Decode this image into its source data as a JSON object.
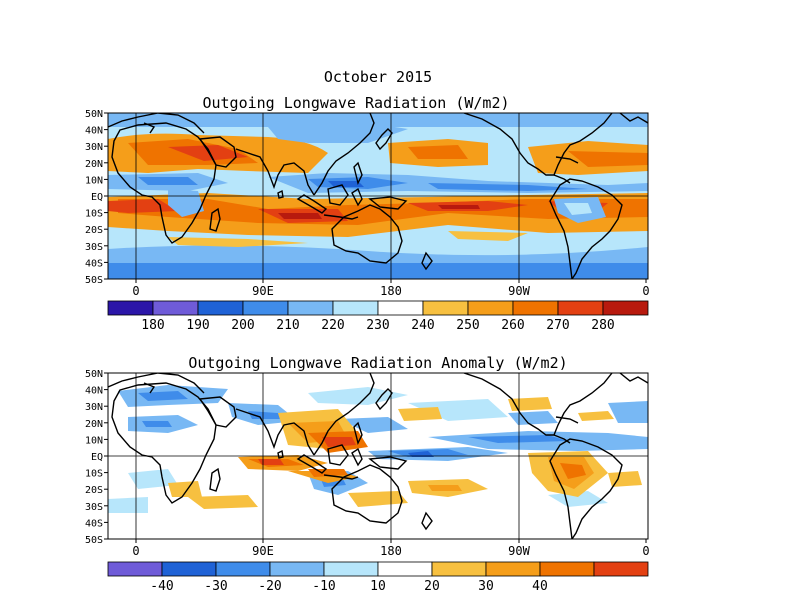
{
  "header": {
    "period": "October 2015",
    "panel1_title": "Outgoing Longwave Radiation (W/m2)",
    "panel2_title": "Outgoing Longwave Radiation Anomaly (W/m2)"
  },
  "axes": {
    "lat_labels": [
      "50N",
      "40N",
      "30N",
      "20N",
      "10N",
      "EQ",
      "10S",
      "20S",
      "30S",
      "40S",
      "50S"
    ],
    "lon_labels": [
      "0",
      "90E",
      "180",
      "90W",
      "0"
    ]
  },
  "colorbar1": {
    "labels": [
      "180",
      "190",
      "200",
      "210",
      "220",
      "230",
      "240",
      "250",
      "260",
      "270",
      "280"
    ],
    "colors": [
      "#2b16a8",
      "#6f5bd8",
      "#1f62d6",
      "#3f8cea",
      "#78b8f4",
      "#b7e6fb",
      "#ffffff",
      "#f7c040",
      "#f59e1a",
      "#ef7300",
      "#e34012",
      "#b81a0e"
    ]
  },
  "colorbar2": {
    "labels": [
      "-40",
      "-30",
      "-20",
      "-10",
      "10",
      "20",
      "30",
      "40"
    ],
    "colors": [
      "#6f5bd8",
      "#1f62d6",
      "#3f8cea",
      "#78b8f4",
      "#b7e6fb",
      "#ffffff",
      "#f7c040",
      "#f59e1a",
      "#ef7300",
      "#e34012"
    ]
  }
}
